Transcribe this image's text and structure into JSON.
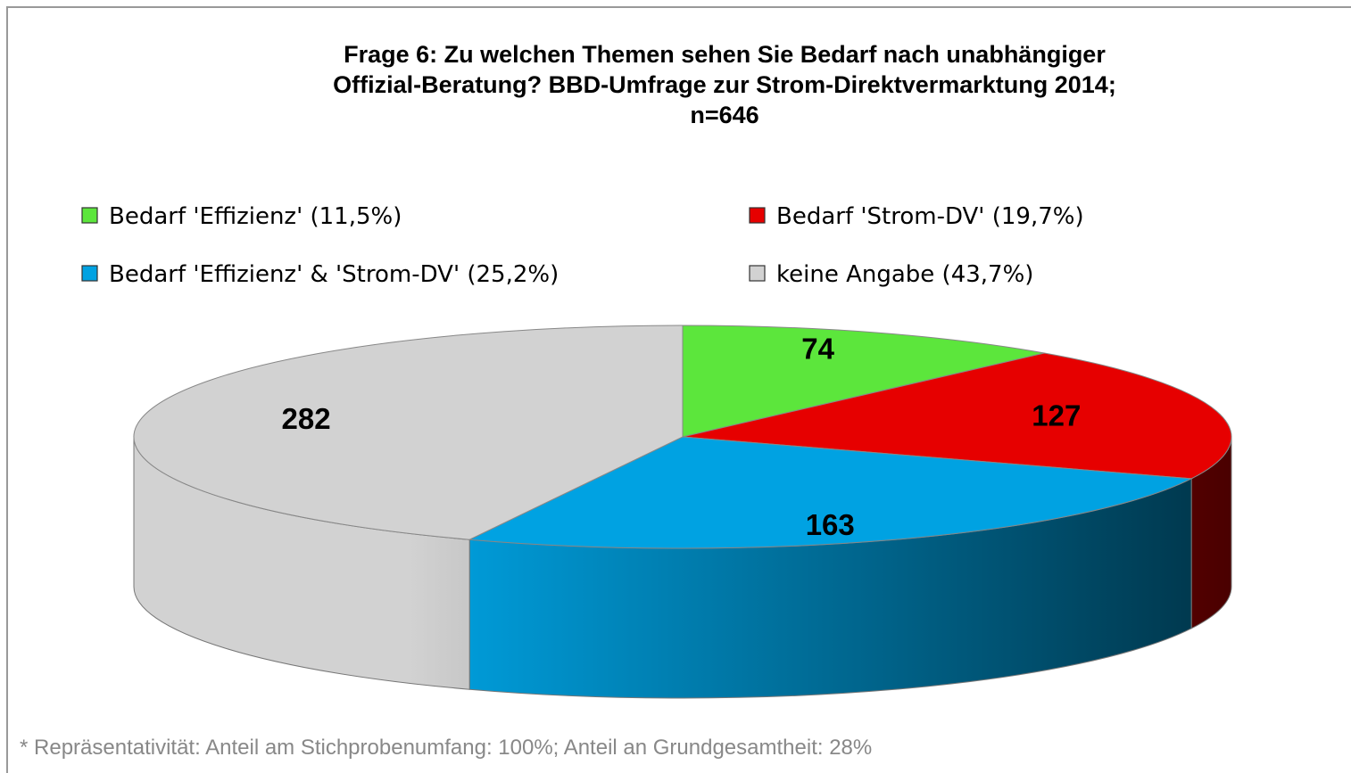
{
  "chart_data": {
    "type": "pie3d",
    "title": [
      "Frage 6: Zu welchen Themen sehen Sie Bedarf nach unabhängiger",
      "Offizial-Beratung? BBD-Umfrage zur Strom-Direktvermarktung 2014;",
      "n=646"
    ],
    "categories": [
      "Bedarf 'Effizienz' (11,5%)",
      "Bedarf 'Strom-DV' (19,7%)",
      "Bedarf 'Effizienz' & 'Strom-DV' (25,2%)",
      "keine Angabe (43,7%)"
    ],
    "values": [
      74,
      127,
      163,
      282
    ],
    "colors": [
      "#5ce63c",
      "#e60000",
      "#00a2e2",
      "#d2d2d2"
    ],
    "footnote": "* Repräsentativität: Anteil am Stichprobenumfang: 100%; Anteil an Grundgesamtheit: 28%"
  }
}
